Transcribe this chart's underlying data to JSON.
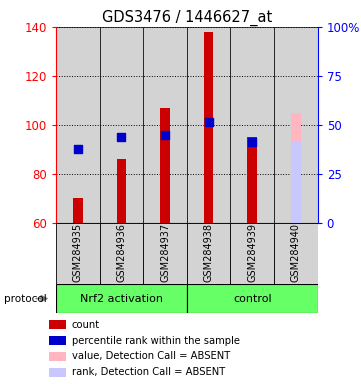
{
  "title": "GDS3476 / 1446627_at",
  "samples": [
    "GSM284935",
    "GSM284936",
    "GSM284937",
    "GSM284938",
    "GSM284939",
    "GSM284940"
  ],
  "ylim_left": [
    60,
    140
  ],
  "ylim_right": [
    0,
    100
  ],
  "yticks_left": [
    60,
    80,
    100,
    120,
    140
  ],
  "yticks_right": [
    0,
    25,
    50,
    75,
    100
  ],
  "ytick_labels_right": [
    "0",
    "25",
    "50",
    "75",
    "100%"
  ],
  "count_values": [
    70,
    86,
    107,
    138,
    95,
    null
  ],
  "count_color": "#CC0000",
  "percentile_values": [
    90,
    95,
    96,
    101,
    93,
    null
  ],
  "percentile_color": "#0000CC",
  "absent_bar_value": 105,
  "absent_bar_idx": 5,
  "absent_bar_color": "#FFB6C1",
  "absent_rank_value": 93,
  "absent_rank_idx": 5,
  "absent_rank_color": "#C8C8FF",
  "nrf2_group_label": "Nrf2 activation",
  "control_group_label": "control",
  "group_color": "#66FF66",
  "protocol_label": "protocol",
  "legend_items": [
    {
      "label": "count",
      "color": "#CC0000"
    },
    {
      "label": "percentile rank within the sample",
      "color": "#0000CC"
    },
    {
      "label": "value, Detection Call = ABSENT",
      "color": "#FFB6C1"
    },
    {
      "label": "rank, Detection Call = ABSENT",
      "color": "#C8C8FF"
    }
  ],
  "bg_color": "#D3D3D3",
  "bar_width": 0.22,
  "dot_size": 28
}
